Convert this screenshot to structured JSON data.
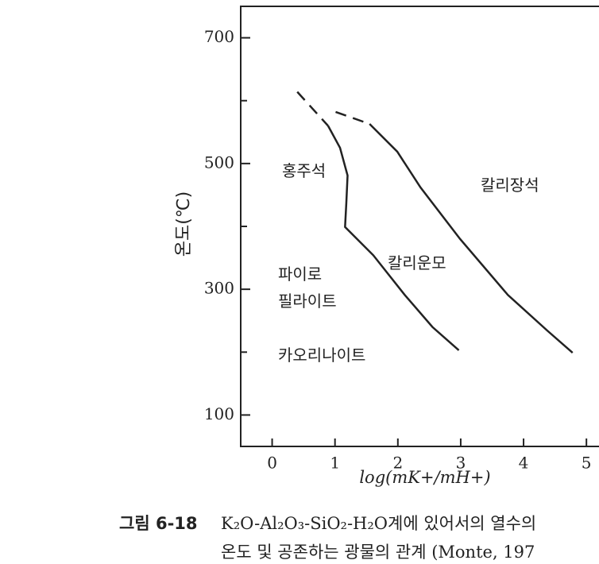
{
  "chart_data": {
    "type": "line",
    "y_label": "온도(℃)",
    "x_label": "log(mK+/mH+)",
    "xlim": [
      -0.5,
      5.2
    ],
    "xticks": [
      0,
      1,
      2,
      3,
      4,
      5
    ],
    "ylim": [
      50,
      750
    ],
    "yticks": [
      100,
      300,
      500,
      700
    ],
    "yminorticks": [
      200,
      400,
      600
    ],
    "series": [
      {
        "color": "#222",
        "dash": true,
        "x": [
          0.4,
          0.89
        ],
        "values": [
          614,
          560
        ]
      },
      {
        "color": "#222",
        "dash": false,
        "x": [
          0.89,
          1.08,
          1.2,
          1.18,
          1.16,
          1.61,
          2.11,
          2.55,
          2.97
        ],
        "values": [
          560,
          525,
          481,
          437,
          399,
          354,
          291,
          240,
          203
        ]
      },
      {
        "color": "#222",
        "dash": true,
        "x": [
          1.01,
          1.55
        ],
        "values": [
          582,
          563
        ]
      },
      {
        "color": "#222",
        "dash": false,
        "x": [
          1.55,
          1.99,
          2.36,
          2.99,
          3.75,
          4.38,
          4.78
        ],
        "values": [
          563,
          519,
          462,
          380,
          291,
          234,
          199
        ]
      }
    ],
    "annotations": [
      "홍주석",
      "칼리장석",
      "칼리운모",
      "파이로",
      "필라이트",
      "카오리나이트"
    ]
  },
  "caption": {
    "label": "그림 6-18",
    "lines": [
      "K₂O-Al₂O₃-SiO₂-H₂O계에 있어서의 열수의",
      "온도 및 공존하는 광물의 관계 (Monte, 197"
    ]
  }
}
